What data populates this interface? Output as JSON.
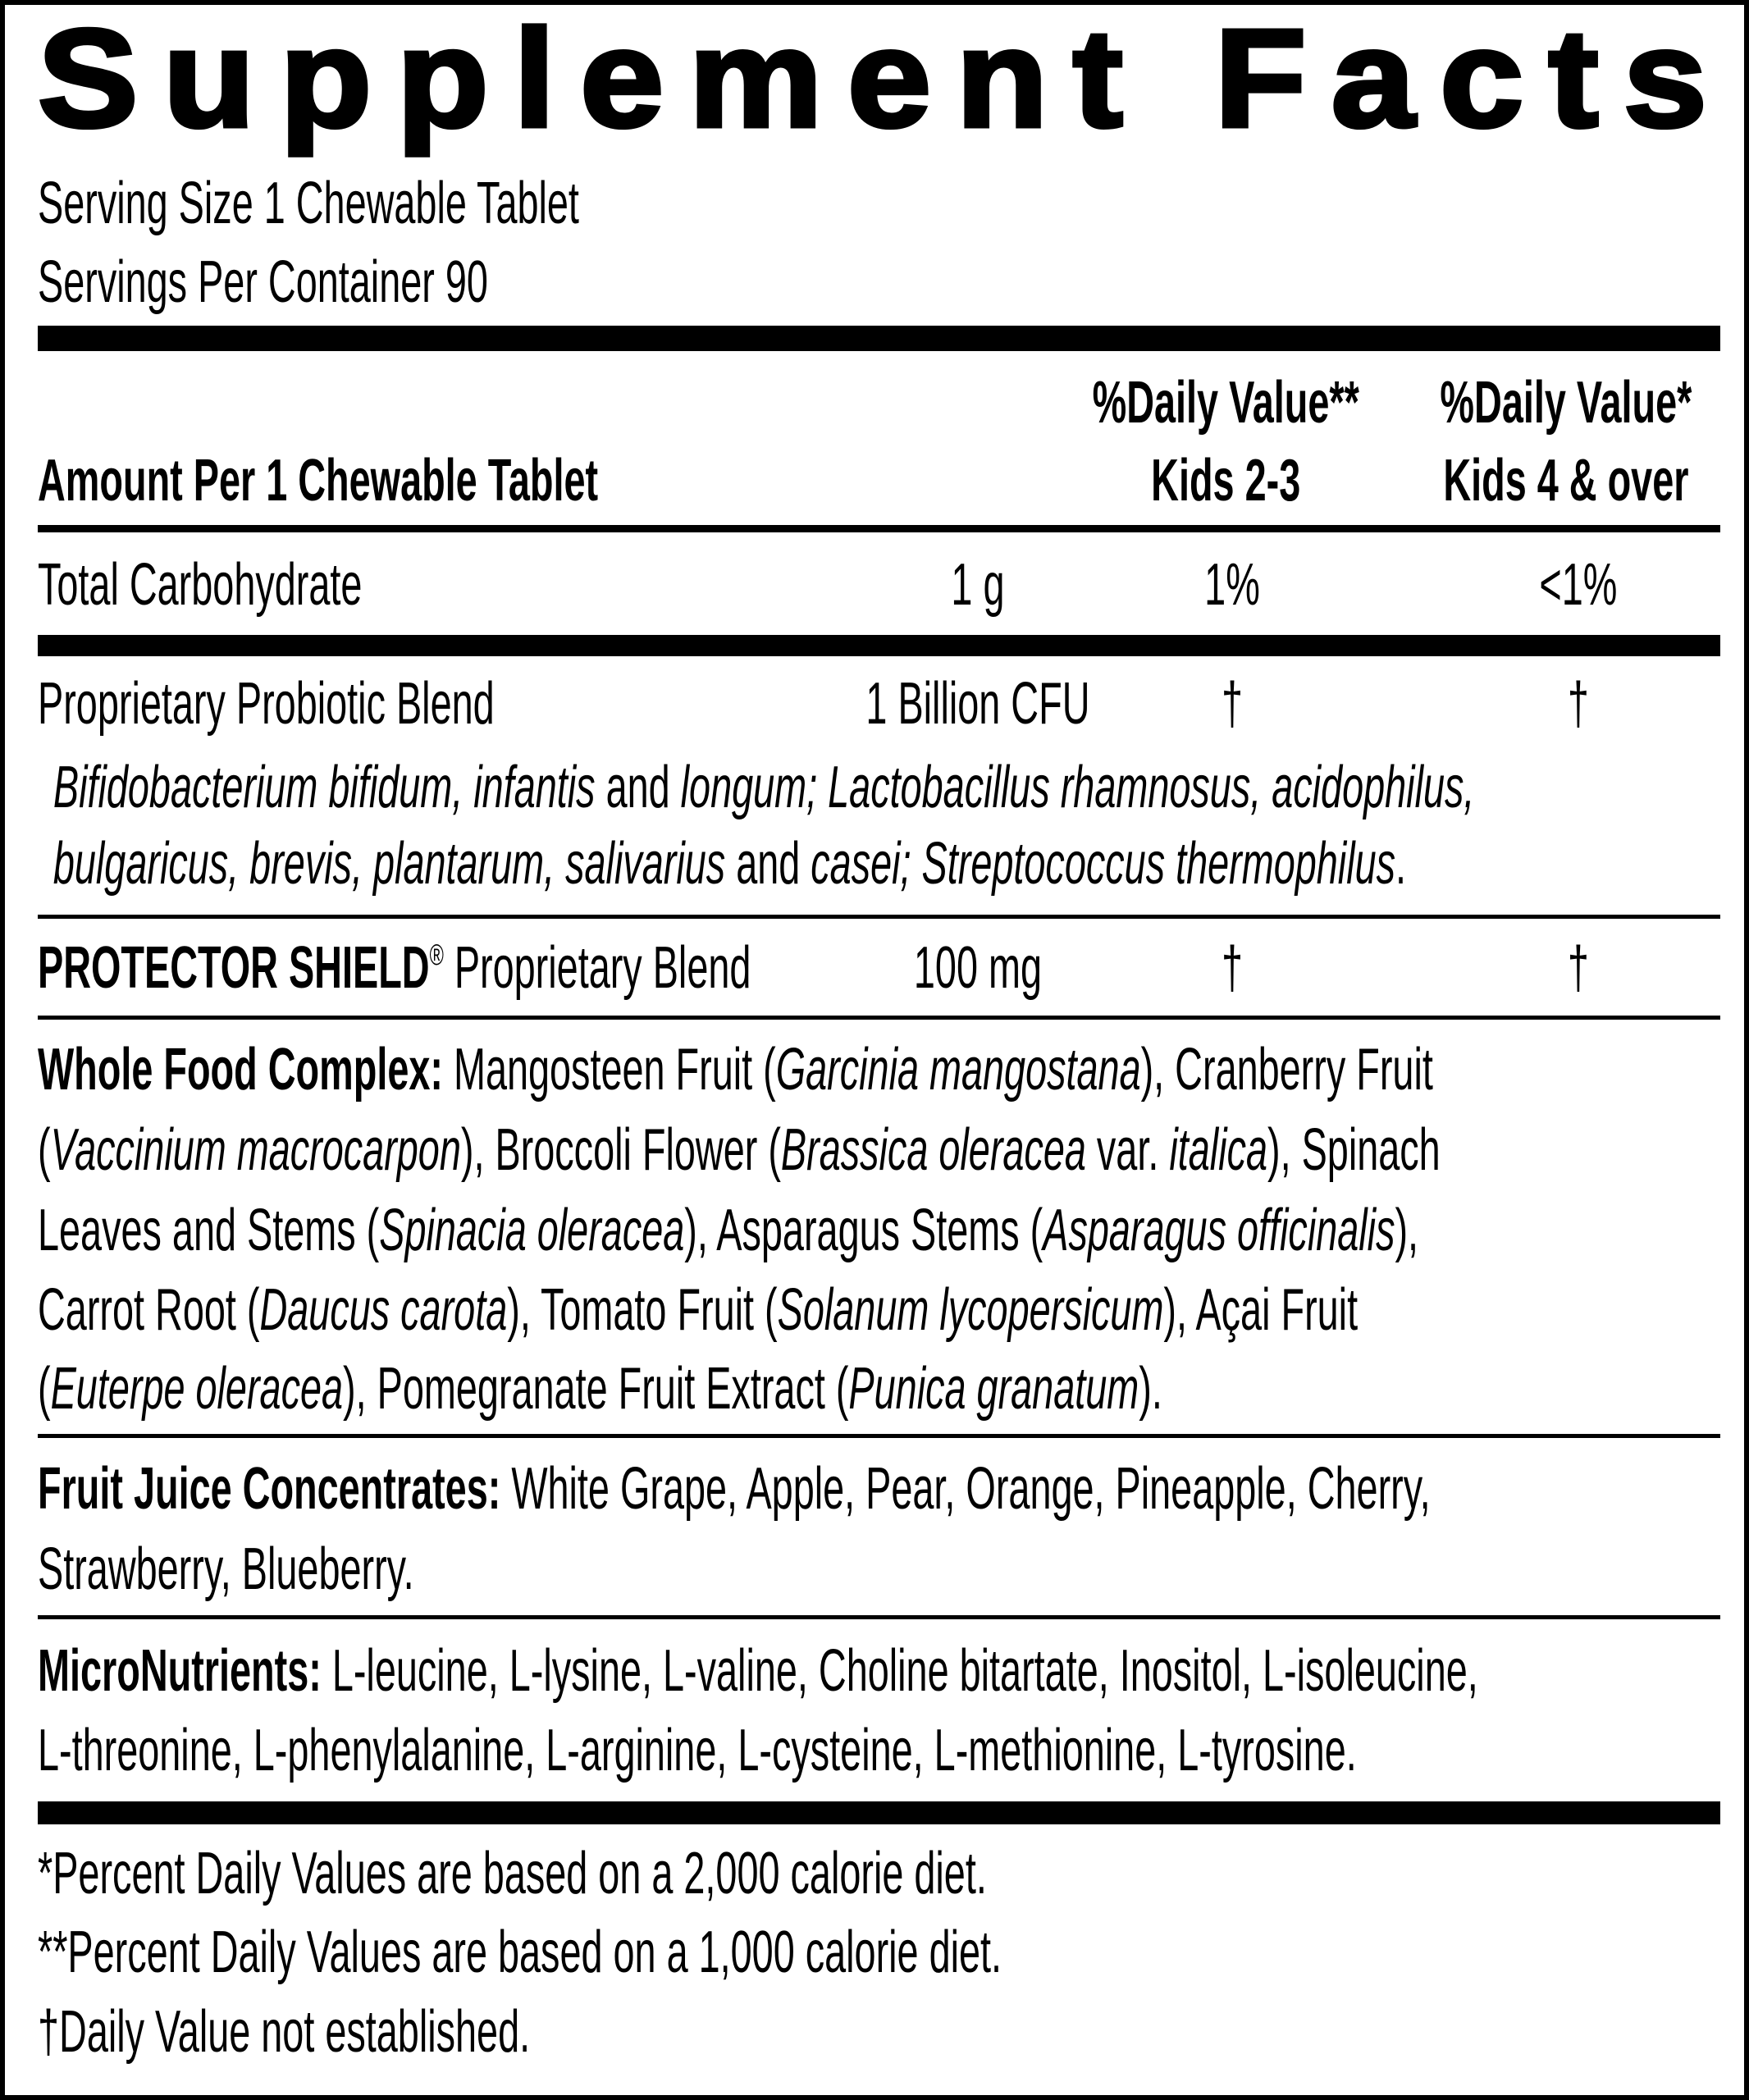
{
  "title": "Supplement Facts",
  "serving_size": "Serving Size 1 Chewable Tablet",
  "servings_per_container": "Servings Per Container 90",
  "header": {
    "amount_per": "Amount Per 1 Chewable Tablet",
    "dv_col1_line1": "%Daily Value**",
    "dv_col1_line2": "Kids 2-3",
    "dv_col2_line1": "%Daily Value*",
    "dv_col2_line2": "Kids 4 & over"
  },
  "rows": {
    "carb": {
      "name": "Total Carbohydrate",
      "amount": "1 g",
      "dv1": "1%",
      "dv2": "<1%"
    },
    "probiotic": {
      "name": "Proprietary Probiotic Blend",
      "amount": "1 Billion CFU",
      "dv1": "†",
      "dv2": "†"
    },
    "protector": {
      "name_bold": "PROTECTOR SHIELD",
      "reg": "®",
      "name_rest": " Proprietary Blend",
      "amount": "100 mg",
      "dv1": "†",
      "dv2": "†"
    }
  },
  "paragraphs": {
    "probiotic_strains": [
      [
        [
          "i",
          "Bifidobacterium bifidum, infantis"
        ],
        [
          "n",
          " and "
        ],
        [
          "i",
          "longum; Lactobacillus rhamnosus, acidophilus,"
        ]
      ],
      [
        [
          "i",
          "bulgaricus, brevis, plantarum, salivarius"
        ],
        [
          "n",
          " and "
        ],
        [
          "i",
          "casei; Streptococcus thermophilus"
        ],
        [
          "n",
          "."
        ]
      ]
    ],
    "whole_food": [
      [
        [
          "b",
          "Whole Food Complex:"
        ],
        [
          "n",
          " Mangosteen Fruit ("
        ],
        [
          "i",
          "Garcinia mangostana"
        ],
        [
          "n",
          "), Cranberry Fruit"
        ]
      ],
      [
        [
          "n",
          "("
        ],
        [
          "i",
          "Vaccinium macrocarpon"
        ],
        [
          "n",
          "), Broccoli Flower ("
        ],
        [
          "i",
          "Brassica oleracea"
        ],
        [
          "n",
          " var. "
        ],
        [
          "i",
          "italica"
        ],
        [
          "n",
          "), Spinach"
        ]
      ],
      [
        [
          "n",
          "Leaves and Stems ("
        ],
        [
          "i",
          "Spinacia oleracea"
        ],
        [
          "n",
          "), Asparagus Stems ("
        ],
        [
          "i",
          "Asparagus officinalis"
        ],
        [
          "n",
          "),"
        ]
      ],
      [
        [
          "n",
          "Carrot Root ("
        ],
        [
          "i",
          "Daucus carota"
        ],
        [
          "n",
          "), Tomato Fruit ("
        ],
        [
          "i",
          "Solanum lycopersicum"
        ],
        [
          "n",
          "), Açai Fruit"
        ]
      ],
      [
        [
          "n",
          "("
        ],
        [
          "i",
          "Euterpe oleracea"
        ],
        [
          "n",
          "), Pomegranate Fruit Extract ("
        ],
        [
          "i",
          "Punica granatum"
        ],
        [
          "n",
          ")."
        ]
      ]
    ],
    "fruit_juice": [
      [
        [
          "b",
          "Fruit Juice Concentrates:"
        ],
        [
          "n",
          " White Grape, Apple, Pear, Orange, Pineapple, Cherry,"
        ]
      ],
      [
        [
          "n",
          "Strawberry, Blueberry."
        ]
      ]
    ],
    "micronutrients": [
      [
        [
          "b",
          "MicroNutrients:"
        ],
        [
          "n",
          " L-leucine, L-lysine, L-valine, Choline bitartate, Inositol, L-isoleucine,"
        ]
      ],
      [
        [
          "n",
          "L-threonine, L-phenylalanine, L-arginine, L-cysteine, L-methionine, L-tyrosine."
        ]
      ]
    ]
  },
  "footnotes": [
    "*Percent Daily Values are based on a 2,000 calorie diet.",
    "**Percent Daily Values are based on a 1,000 calorie diet.",
    "†Daily Value not established."
  ]
}
